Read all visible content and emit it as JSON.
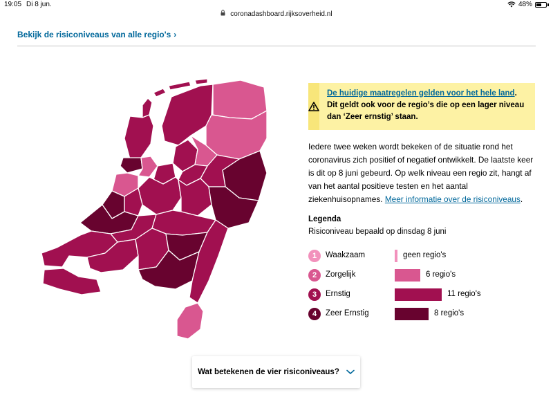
{
  "status_bar": {
    "time": "19:05",
    "date": "Di 8 jun.",
    "battery": "48%"
  },
  "browser": {
    "url": "coronadashboard.rijksoverheid.nl"
  },
  "top_link": {
    "label": "Bekijk de risiconiveaus van alle regio's"
  },
  "warning": {
    "link_text": "De huidige maatregelen gelden voor het hele land",
    "text": ". Dit geldt ook voor de regio’s die op een lager niveau dan ‘Zeer ernstig’ staan."
  },
  "description": {
    "text": "Iedere twee weken wordt bekeken of de situatie rond het coronavirus zich positief of negatief ontwikkelt. De laatste keer is dit op 8 juni gebeurd. Op welk niveau een regio zit, hangt af van het aantal positieve testen en het aantal ziekenhuisopnames. ",
    "link_text": "Meer informatie over de risiconiveaus",
    "end": "."
  },
  "legend": {
    "title": "Legenda",
    "subtitle": "Risiconiveau bepaald op dinsdag 8 juni",
    "levels": [
      {
        "number": "1",
        "label": "Waakzaam",
        "count_label": "geen regio's",
        "count": 0,
        "color": "#f291bc"
      },
      {
        "number": "2",
        "label": "Zorgelijk",
        "count_label": "6 regio's",
        "count": 6,
        "color": "#d95790"
      },
      {
        "number": "3",
        "label": "Ernstig",
        "count_label": "11 regio's",
        "count": 11,
        "color": "#a11050"
      },
      {
        "number": "4",
        "label": "Zeer Ernstig",
        "count_label": "8 regio's",
        "count": 8,
        "color": "#68032f"
      }
    ]
  },
  "accordion": {
    "label": "Wat betekenen de vier risiconiveaus?"
  },
  "icons": {
    "warning": "warning-icon",
    "chevron": "chevron-down-icon",
    "wifi": "wifi-icon",
    "lock": "lock-icon"
  }
}
